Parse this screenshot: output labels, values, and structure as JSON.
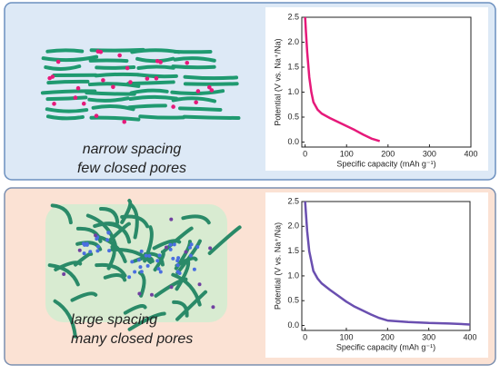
{
  "chart_data": [
    {
      "type": "line",
      "annotations": [
        "narrow spacing",
        "few closed pores"
      ],
      "xlabel": "Specific capacity (mAh g⁻¹)",
      "ylabel": "Potential (V vs. Na⁺/Na)",
      "x": [
        0,
        2,
        5,
        10,
        15,
        20,
        30,
        40,
        60,
        80,
        100,
        120,
        140,
        160,
        180
      ],
      "series": [
        {
          "name": "narrow spacing",
          "color": "#e6197a",
          "values": [
            2.5,
            2.2,
            1.8,
            1.3,
            1.0,
            0.8,
            0.65,
            0.57,
            0.48,
            0.4,
            0.32,
            0.24,
            0.15,
            0.07,
            0.02
          ]
        }
      ],
      "xlim": [
        -8,
        400
      ],
      "ylim": [
        -0.1,
        2.5
      ],
      "xticks": [
        0,
        100,
        200,
        300,
        400
      ],
      "yticks": [
        {
          "value": 0,
          "label": "0.0"
        },
        0.5,
        {
          "value": 1,
          "label": "1.0"
        },
        1.5,
        {
          "value": 2,
          "label": "2.0"
        },
        2.5
      ]
    },
    {
      "type": "line",
      "annotations": [
        "large spacing",
        "many closed pores"
      ],
      "xlabel": "Specific capacity (mAh g⁻¹)",
      "ylabel": "Potential (V vs. Na⁺/Na)",
      "x": [
        0,
        5,
        10,
        20,
        30,
        40,
        60,
        80,
        100,
        120,
        140,
        160,
        180,
        200,
        250,
        300,
        350,
        400
      ],
      "series": [
        {
          "name": "large spacing",
          "color": "#6a4fb0",
          "values": [
            2.5,
            1.9,
            1.5,
            1.1,
            0.95,
            0.85,
            0.72,
            0.6,
            0.48,
            0.38,
            0.3,
            0.22,
            0.15,
            0.1,
            0.07,
            0.05,
            0.04,
            0.02
          ]
        }
      ],
      "xlim": [
        -8,
        400
      ],
      "ylim": [
        -0.1,
        2.5
      ],
      "xticks": [
        0,
        100,
        200,
        300,
        400
      ],
      "yticks": [
        {
          "value": 0,
          "label": "0.0"
        },
        0.5,
        {
          "value": 1,
          "label": "1.0"
        },
        1.5,
        {
          "value": 2,
          "label": "2.0"
        },
        2.5
      ]
    }
  ]
}
